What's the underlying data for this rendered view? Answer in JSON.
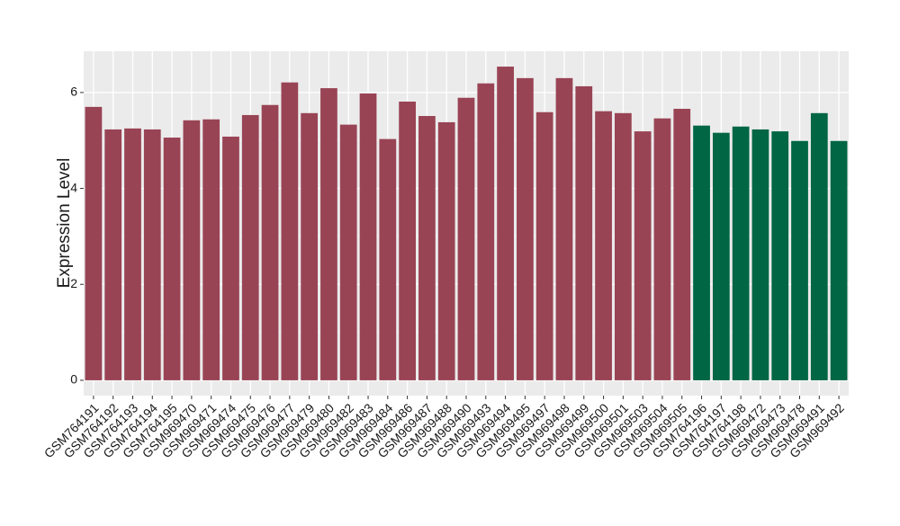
{
  "chart_data": {
    "type": "bar",
    "y_label": "Expression Level",
    "categories": [
      "GSM764191",
      "GSM764192",
      "GSM764193",
      "GSM764194",
      "GSM764195",
      "GSM969470",
      "GSM969471",
      "GSM969474",
      "GSM969475",
      "GSM969476",
      "GSM969477",
      "GSM969479",
      "GSM969480",
      "GSM969482",
      "GSM969483",
      "GSM969484",
      "GSM969486",
      "GSM969487",
      "GSM969488",
      "GSM969490",
      "GSM969493",
      "GSM969494",
      "GSM969495",
      "GSM969497",
      "GSM969498",
      "GSM969499",
      "GSM969500",
      "GSM969501",
      "GSM969503",
      "GSM969504",
      "GSM969505",
      "GSM764196",
      "GSM764197",
      "GSM764198",
      "GSM969472",
      "GSM969473",
      "GSM969478",
      "GSM969491",
      "GSM969492"
    ],
    "values": [
      5.7,
      5.23,
      5.25,
      5.23,
      5.06,
      5.42,
      5.44,
      5.08,
      5.53,
      5.74,
      6.21,
      5.57,
      6.09,
      5.33,
      5.98,
      5.03,
      5.81,
      5.51,
      5.38,
      5.89,
      6.19,
      6.54,
      6.3,
      5.59,
      6.3,
      6.13,
      5.61,
      5.57,
      5.19,
      5.46,
      5.66,
      5.31,
      5.16,
      5.29,
      5.23,
      5.19,
      4.99,
      5.57,
      4.99
    ],
    "colors": [
      "#994455",
      "#994455",
      "#994455",
      "#994455",
      "#994455",
      "#994455",
      "#994455",
      "#994455",
      "#994455",
      "#994455",
      "#994455",
      "#994455",
      "#994455",
      "#994455",
      "#994455",
      "#994455",
      "#994455",
      "#994455",
      "#994455",
      "#994455",
      "#994455",
      "#994455",
      "#994455",
      "#994455",
      "#994455",
      "#994455",
      "#994455",
      "#994455",
      "#994455",
      "#994455",
      "#994455",
      "#006644",
      "#006644",
      "#006644",
      "#006644",
      "#006644",
      "#006644",
      "#006644",
      "#006644"
    ],
    "ylim": [
      -0.32,
      6.86
    ],
    "yticks": [
      0,
      2,
      4,
      6
    ],
    "minor_yticks": [
      1,
      3,
      5
    ],
    "grid": true
  }
}
